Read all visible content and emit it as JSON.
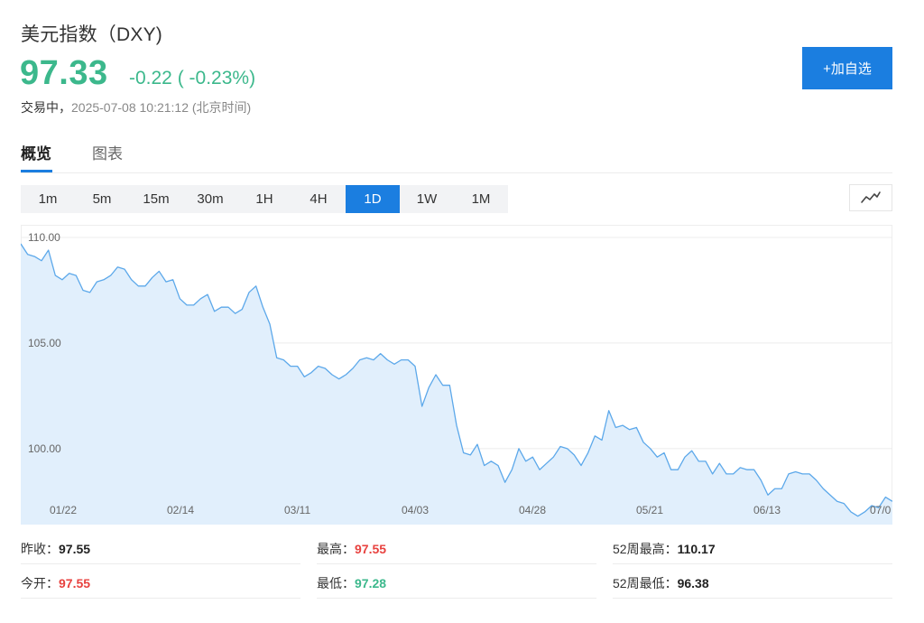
{
  "header": {
    "title": "美元指数（DXY)",
    "price": "97.33",
    "change": "-0.22 ( -0.23%)",
    "status_label": "交易中，",
    "timestamp": "2025-07-08 10:21:12 (北京时间)",
    "watch_button": "+加自选"
  },
  "tabs": [
    {
      "label": "概览",
      "active": true
    },
    {
      "label": "图表",
      "active": false
    }
  ],
  "periods": [
    {
      "label": "1m",
      "active": false
    },
    {
      "label": "5m",
      "active": false
    },
    {
      "label": "15m",
      "active": false
    },
    {
      "label": "30m",
      "active": false
    },
    {
      "label": "1H",
      "active": false
    },
    {
      "label": "4H",
      "active": false
    },
    {
      "label": "1D",
      "active": true
    },
    {
      "label": "1W",
      "active": false
    },
    {
      "label": "1M",
      "active": false
    }
  ],
  "chart_toggle_icon": "line-chart-icon",
  "colors": {
    "up": "#e8423f",
    "down": "#3cb88c",
    "accent": "#1b7ee0",
    "line": "#5ca8ea",
    "area": "#e1effc"
  },
  "chart_data": {
    "type": "area",
    "y_ticks": [
      "110.00",
      "105.00",
      "100.00"
    ],
    "y_tick_values": [
      110,
      105,
      100
    ],
    "x_ticks": [
      "01/22",
      "02/14",
      "03/11",
      "04/03",
      "04/28",
      "05/21",
      "06/13",
      "07/0"
    ],
    "ylim": [
      96.4,
      110.6
    ],
    "grid": true,
    "values": [
      109.7,
      109.2,
      109.1,
      108.9,
      109.4,
      108.2,
      108.0,
      108.3,
      108.2,
      107.5,
      107.4,
      107.9,
      108.0,
      108.2,
      108.6,
      108.5,
      108.0,
      107.7,
      107.7,
      108.1,
      108.4,
      107.9,
      108.0,
      107.1,
      106.8,
      106.8,
      107.1,
      107.3,
      106.5,
      106.7,
      106.7,
      106.4,
      106.6,
      107.4,
      107.7,
      106.7,
      105.9,
      104.3,
      104.2,
      103.9,
      103.9,
      103.4,
      103.6,
      103.9,
      103.8,
      103.5,
      103.3,
      103.5,
      103.8,
      104.2,
      104.3,
      104.2,
      104.5,
      104.2,
      104.0,
      104.2,
      104.2,
      103.9,
      102.0,
      102.9,
      103.5,
      103.0,
      103.0,
      101.1,
      99.8,
      99.7,
      100.2,
      99.2,
      99.4,
      99.2,
      98.4,
      99.0,
      100.0,
      99.4,
      99.6,
      99.0,
      99.3,
      99.6,
      100.1,
      100.0,
      99.7,
      99.2,
      99.8,
      100.6,
      100.4,
      101.8,
      101.0,
      101.1,
      100.9,
      101.0,
      100.3,
      100.0,
      99.6,
      99.8,
      99.0,
      99.0,
      99.6,
      99.9,
      99.4,
      99.4,
      98.8,
      99.3,
      98.8,
      98.8,
      99.1,
      99.0,
      99.0,
      98.5,
      97.8,
      98.1,
      98.1,
      98.8,
      98.9,
      98.8,
      98.8,
      98.5,
      98.1,
      97.8,
      97.5,
      97.4,
      97.0,
      96.8,
      97.0,
      97.3,
      97.2,
      97.7,
      97.5
    ]
  },
  "stats": [
    {
      "label": "昨收：",
      "value": "97.55",
      "color": ""
    },
    {
      "label": "最高：",
      "value": "97.55",
      "color": "red"
    },
    {
      "label": "52周最高：",
      "value": "110.17",
      "color": ""
    },
    {
      "label": "今开：",
      "value": "97.55",
      "color": "red"
    },
    {
      "label": "最低：",
      "value": "97.28",
      "color": "green"
    },
    {
      "label": "52周最低：",
      "value": "96.38",
      "color": ""
    }
  ]
}
